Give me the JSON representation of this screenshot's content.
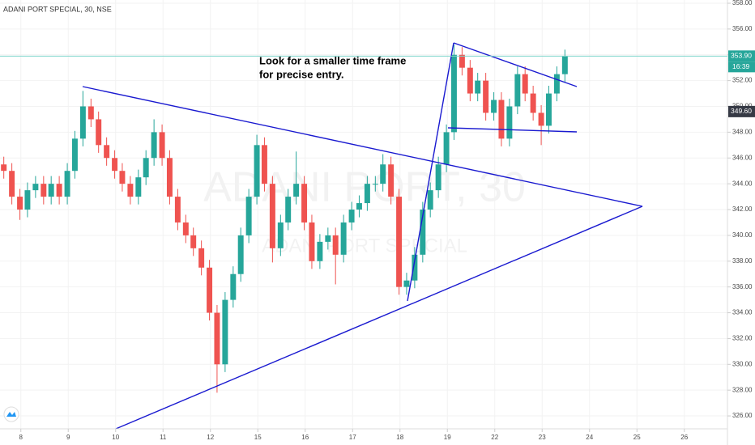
{
  "chart_data": {
    "type": "candlestick",
    "title": "ADANI PORT SPECIAL, 30, NSE",
    "watermark": {
      "main": "ADANI PORT, 30",
      "sub": "ADANI PORT SPECIAL"
    },
    "annotation": [
      "Look for a smaller time frame",
      "for precise entry."
    ],
    "up_color": "#26a69a",
    "down_color": "#ef5350",
    "x": [
      0.08,
      0.25,
      0.42,
      0.58,
      0.75,
      0.92,
      1.08,
      1.25,
      1.42,
      1.58,
      1.75,
      1.92,
      2.08,
      2.25,
      2.42,
      2.58,
      2.75,
      2.92,
      3.08,
      3.25,
      3.42,
      3.58,
      3.75,
      3.92,
      4.08,
      4.25,
      4.42,
      4.58,
      4.75,
      4.92,
      5.08,
      5.25,
      5.42,
      5.58,
      5.75,
      5.92,
      6.08,
      6.25,
      6.42,
      6.58,
      6.75,
      6.92,
      7.08,
      7.25,
      7.42,
      7.58,
      7.75,
      7.92,
      8.08,
      8.25,
      8.42,
      8.58,
      8.75,
      8.92,
      9.08,
      9.25,
      9.42,
      9.58,
      9.75,
      9.92,
      10.08,
      10.25,
      10.42,
      10.58,
      10.75,
      10.92,
      11.08,
      11.25,
      11.42,
      11.58,
      11.75,
      11.92
    ],
    "open": [
      345.5,
      345,
      343,
      342,
      343.5,
      344,
      343,
      344,
      343,
      345,
      347.5,
      350,
      349,
      347,
      346,
      345,
      344,
      343,
      344.5,
      346,
      348,
      346,
      343,
      341,
      340,
      339,
      337.5,
      334,
      330,
      335,
      337,
      340,
      343,
      347,
      344,
      339,
      341,
      343,
      344,
      341,
      338,
      339.5,
      340,
      338.5,
      341,
      342,
      342.5,
      344,
      344,
      345.5,
      343,
      336,
      336.5,
      338.5,
      342,
      343.5,
      345.5,
      348,
      354,
      353,
      351,
      352,
      349.5,
      350.5,
      347.5,
      350,
      352.5,
      351,
      349.5,
      348.5,
      351,
      352.5
    ],
    "high": [
      346.1,
      345.6,
      343.6,
      344.1,
      344.6,
      344.6,
      344.6,
      344.6,
      345.6,
      348.1,
      351.2,
      350.6,
      349.6,
      347.6,
      346.6,
      345.6,
      344.6,
      345.1,
      346.6,
      349,
      348.6,
      346.6,
      343.6,
      341.6,
      340.6,
      339.6,
      338.1,
      334.6,
      335.6,
      337.6,
      340.6,
      343.6,
      347.8,
      347.6,
      344.6,
      341.6,
      343.6,
      346.5,
      344.6,
      341.6,
      340.1,
      340.6,
      340.6,
      341.6,
      342.6,
      343.1,
      344.6,
      344.6,
      346.3,
      346.1,
      343.6,
      337.1,
      339.1,
      342.6,
      344.1,
      346.1,
      348.6,
      354.8,
      354.6,
      353.6,
      352.6,
      352.6,
      351.1,
      351.1,
      350.6,
      353.1,
      353.1,
      351.6,
      350.1,
      351.6,
      353.1,
      354.4
    ],
    "low": [
      344.4,
      342.4,
      341.2,
      341.4,
      342.9,
      342.4,
      342.4,
      342.4,
      342.4,
      344.4,
      346.9,
      348.4,
      346.4,
      345.4,
      344.4,
      343.4,
      342.4,
      342.4,
      343.9,
      345.4,
      345.4,
      342.4,
      340.4,
      339.4,
      338.4,
      336.9,
      333.4,
      327.8,
      329.4,
      334.4,
      336.4,
      339.4,
      342.4,
      343.4,
      337.9,
      338.4,
      340.4,
      342.4,
      340.4,
      337.4,
      337.4,
      338.9,
      336.2,
      337.9,
      340.4,
      341.4,
      341.9,
      343.4,
      343.4,
      342.4,
      335.4,
      335.4,
      335.9,
      337.9,
      341.4,
      342.9,
      344.9,
      347.4,
      352.4,
      350.4,
      350.4,
      348.9,
      348.9,
      346.9,
      346.9,
      349.4,
      350.4,
      348.9,
      347,
      347.9,
      350.4,
      351.9
    ],
    "close": [
      345,
      343,
      342,
      343.5,
      344,
      343,
      344,
      343,
      345,
      347.5,
      350,
      349,
      347,
      346,
      345,
      344,
      343,
      344.5,
      346,
      348,
      346,
      343,
      341,
      340,
      339,
      337.5,
      334,
      330,
      335,
      337,
      340,
      343,
      347,
      344,
      339,
      341,
      343,
      344,
      341,
      338,
      339.5,
      340,
      338.5,
      341,
      342,
      342.5,
      344,
      344,
      345.5,
      343,
      336,
      336.5,
      338.5,
      342,
      343.5,
      345.5,
      348,
      354,
      353,
      351,
      352,
      349.5,
      350.5,
      347.5,
      350,
      352.5,
      351,
      349.5,
      348.5,
      351,
      352.5,
      353.9
    ],
    "xlim": [
      0,
      15.35
    ],
    "xticks": [
      {
        "value": 0.44,
        "label": "8"
      },
      {
        "value": 1.44,
        "label": "9"
      },
      {
        "value": 2.44,
        "label": "10"
      },
      {
        "value": 3.44,
        "label": "11"
      },
      {
        "value": 4.44,
        "label": "12"
      },
      {
        "value": 5.44,
        "label": "15"
      },
      {
        "value": 6.44,
        "label": "16"
      },
      {
        "value": 7.44,
        "label": "17"
      },
      {
        "value": 8.44,
        "label": "18"
      },
      {
        "value": 9.44,
        "label": "19"
      },
      {
        "value": 10.44,
        "label": "22"
      },
      {
        "value": 11.44,
        "label": "23"
      },
      {
        "value": 12.44,
        "label": "24"
      },
      {
        "value": 13.44,
        "label": "25"
      },
      {
        "value": 14.44,
        "label": "26"
      }
    ],
    "ylim": [
      325,
      358.25
    ],
    "yticks": [
      {
        "value": 326,
        "label": "326.00"
      },
      {
        "value": 328,
        "label": "328.00"
      },
      {
        "value": 330,
        "label": "330.00"
      },
      {
        "value": 332,
        "label": "332.00"
      },
      {
        "value": 334,
        "label": "334.00"
      },
      {
        "value": 336,
        "label": "336.00"
      },
      {
        "value": 338,
        "label": "338.00"
      },
      {
        "value": 340,
        "label": "340.00"
      },
      {
        "value": 342,
        "label": "342.00"
      },
      {
        "value": 344,
        "label": "344.00"
      },
      {
        "value": 346,
        "label": "346.00"
      },
      {
        "value": 348,
        "label": "348.00"
      },
      {
        "value": 350,
        "label": "350.00"
      },
      {
        "value": 352,
        "label": "352.00"
      },
      {
        "value": 354,
        "label": "354.00"
      },
      {
        "value": 356,
        "label": "356.00"
      },
      {
        "value": 358,
        "label": "358.00"
      }
    ],
    "last_price": {
      "value": 353.9,
      "label": "353.90",
      "color": "#26a69a"
    },
    "countdown": "16:39",
    "marker": {
      "value": 349.6,
      "label": "349.60",
      "color": "#363a45"
    }
  }
}
